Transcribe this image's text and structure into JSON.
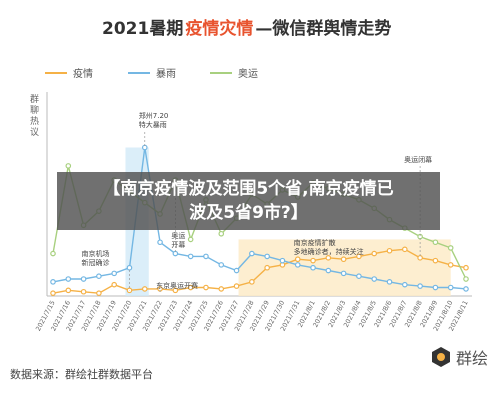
{
  "chart_data": {
    "type": "line",
    "title_parts": [
      "2021暑期",
      "疫情灾情",
      "—微信群舆情走势"
    ],
    "ylabel": "群聊热议",
    "legend": {
      "placement": "top",
      "entries": [
        "疫情",
        "暴雨",
        "奥运"
      ]
    },
    "colors": {
      "疫情": "#f5b146",
      "暴雨": "#74b7e3",
      "奥运": "#a8d07f",
      "accent": "#e8532e"
    },
    "categories": [
      "2021/7/15",
      "2021/7/16",
      "2021/7/17",
      "2021/7/18",
      "2021/7/19",
      "2021/7/20",
      "2021/7/21",
      "2021/7/22",
      "2021/7/23",
      "2021/7/24",
      "2021/7/25",
      "2021/7/26",
      "2021/7/27",
      "2021/7/28",
      "2021/7/29",
      "2021/7/30",
      "2021/7/31",
      "2021/8/1",
      "2021/8/2",
      "2021/8/3",
      "2021/8/4",
      "2021/8/5",
      "2021/8/6",
      "2021/8/7",
      "2021/8/8",
      "2021/8/9",
      "2021/8/10",
      "2021/8/11"
    ],
    "series": [
      {
        "name": "疫情",
        "values": [
          2,
          4,
          3,
          2,
          8,
          4,
          5,
          5,
          4,
          6,
          6,
          5,
          7,
          10,
          20,
          22,
          26,
          25,
          27,
          26,
          28,
          30,
          32,
          33,
          27,
          25,
          22,
          20
        ]
      },
      {
        "name": "暴雨",
        "values": [
          10,
          12,
          12,
          14,
          16,
          20,
          105,
          38,
          30,
          28,
          28,
          22,
          18,
          30,
          28,
          25,
          22,
          20,
          18,
          16,
          14,
          12,
          10,
          8,
          7,
          6,
          6,
          5
        ]
      },
      {
        "name": "奥运",
        "values": [
          30,
          92,
          50,
          60,
          82,
          74,
          66,
          58,
          82,
          40,
          68,
          44,
          55,
          72,
          65,
          75,
          70,
          80,
          76,
          72,
          68,
          62,
          54,
          48,
          42,
          38,
          34,
          12
        ]
      }
    ],
    "ylim": [
      0,
      140
    ],
    "grid": false,
    "annotations": [
      {
        "text": "郑州7.20 特大暴雨",
        "x": "2021/7/21"
      },
      {
        "text": "南京机场 新冠确诊",
        "x": "2021/7/20"
      },
      {
        "text": "奥运 开幕",
        "x": "2021/7/23"
      },
      {
        "text": "东京奥运开赛",
        "x": "2021/7/22"
      },
      {
        "text": "南京疫情扩散 多地确诊者，持续关注",
        "x": "2021/8/3"
      },
      {
        "text": "奥运闭幕",
        "x": "2021/8/8"
      }
    ]
  },
  "overlay": {
    "line1": "【南京疫情波及范围5个省,南京疫情已",
    "line2": "波及5省9市?】"
  },
  "footer": {
    "source": "数据来源：群绘社群数据平台",
    "logo_text": "群绘"
  }
}
